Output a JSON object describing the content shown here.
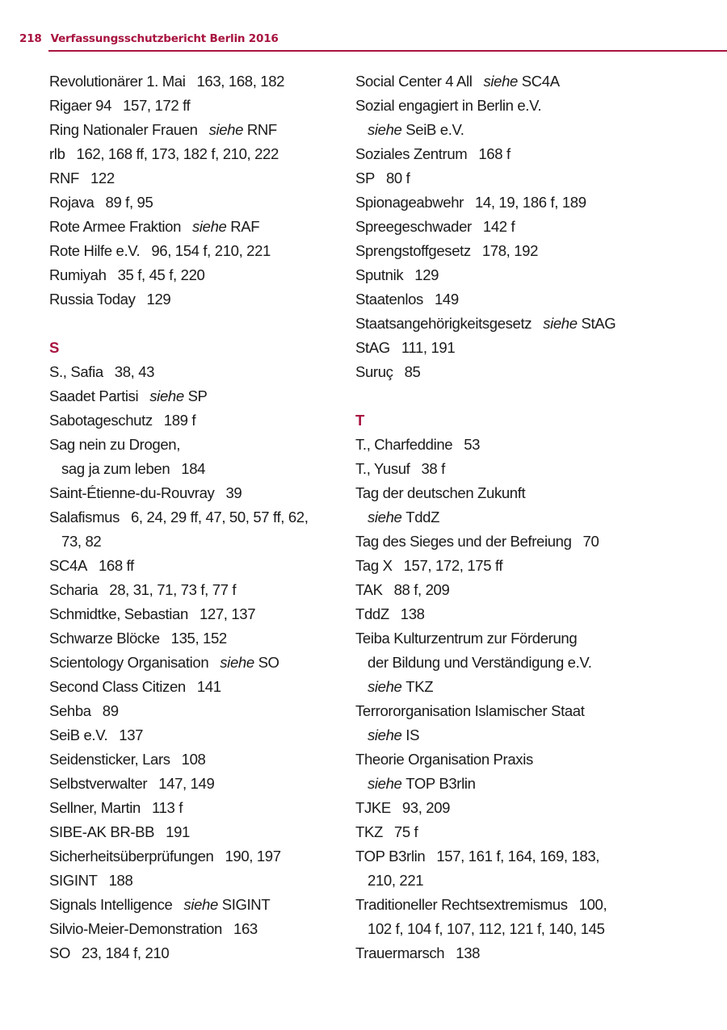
{
  "header": {
    "page_number": "218",
    "title": "Verfassungsschutzbericht Berlin 2016"
  },
  "colors": {
    "accent": "#a8133f",
    "text": "#1a1a1a"
  },
  "columns": [
    {
      "lines": [
        {
          "t": "Revolutionärer 1. Mai",
          "p": "163, 168, 182"
        },
        {
          "t": "Rigaer 94",
          "p": "157, 172 ff"
        },
        {
          "t": "Ring Nationaler Frauen",
          "s": "siehe",
          "r": "RNF"
        },
        {
          "t": "rlb",
          "p": "162, 168 ff, 173, 182 f, 210, 222"
        },
        {
          "t": "RNF",
          "p": "122"
        },
        {
          "t": "Rojava",
          "p": "89 f, 95"
        },
        {
          "t": "Rote Armee Fraktion",
          "s": "siehe",
          "r": "RAF"
        },
        {
          "t": "Rote Hilfe e.V.",
          "p": "96, 154 f, 210, 221"
        },
        {
          "t": "Rumiyah",
          "p": "35 f, 45 f, 220"
        },
        {
          "t": "Russia Today",
          "p": "129"
        },
        {
          "blank": true
        },
        {
          "h": "S"
        },
        {
          "t": "S., Safia",
          "p": "38, 43"
        },
        {
          "t": "Saadet Partisi",
          "s": "siehe",
          "r": "SP"
        },
        {
          "t": "Sabotageschutz",
          "p": "189 f"
        },
        {
          "t": "Sag nein zu Drogen,"
        },
        {
          "i": true,
          "t": "sag ja zum leben",
          "p": "184"
        },
        {
          "t": "Saint-Étienne-du-Rouvray",
          "p": "39"
        },
        {
          "t": "Salafismus",
          "p": "6, 24, 29 ff, 47, 50, 57 ff, 62,"
        },
        {
          "i": true,
          "t": "73, 82"
        },
        {
          "t": "SC4A",
          "p": "168 ff"
        },
        {
          "t": "Scharia",
          "p": "28, 31, 71, 73 f, 77 f"
        },
        {
          "t": "Schmidtke, Sebastian",
          "p": "127, 137"
        },
        {
          "t": "Schwarze Blöcke",
          "p": "135, 152"
        },
        {
          "t": "Scientology Organisation",
          "s": "siehe",
          "r": "SO"
        },
        {
          "t": "Second Class Citizen",
          "p": "141"
        },
        {
          "t": "Sehba",
          "p": "89"
        },
        {
          "t": "SeiB e.V.",
          "p": "137"
        },
        {
          "t": "Seidensticker, Lars",
          "p": "108"
        },
        {
          "t": "Selbstverwalter",
          "p": "147, 149"
        },
        {
          "t": "Sellner, Martin",
          "p": "113 f"
        },
        {
          "t": "SIBE-AK BR-BB",
          "p": "191"
        },
        {
          "t": "Sicherheitsüberprüfungen",
          "p": "190, 197"
        },
        {
          "t": "SIGINT",
          "p": "188"
        },
        {
          "t": "Signals Intelligence",
          "s": "siehe",
          "r": "SIGINT"
        },
        {
          "t": "Silvio-Meier-Demonstration",
          "p": "163"
        },
        {
          "t": "SO",
          "p": "23, 184 f, 210"
        }
      ]
    },
    {
      "lines": [
        {
          "t": "Social Center 4 All",
          "s": "siehe",
          "r": "SC4A"
        },
        {
          "t": "Sozial engagiert in Berlin e.V."
        },
        {
          "i": true,
          "s": "siehe",
          "r": "SeiB e.V."
        },
        {
          "t": "Soziales Zentrum",
          "p": "168 f"
        },
        {
          "t": "SP",
          "p": "80 f"
        },
        {
          "t": "Spionageabwehr",
          "p": "14, 19, 186 f, 189"
        },
        {
          "t": "Spreegeschwader",
          "p": "142 f"
        },
        {
          "t": "Sprengstoffgesetz",
          "p": "178, 192"
        },
        {
          "t": "Sputnik",
          "p": "129"
        },
        {
          "t": "Staatenlos",
          "p": "149"
        },
        {
          "t": "Staatsangehörigkeitsgesetz",
          "s": "siehe",
          "r": "StAG"
        },
        {
          "t": "StAG",
          "p": "111, 191"
        },
        {
          "t": "Suruç",
          "p": "85"
        },
        {
          "blank": true
        },
        {
          "h": "T"
        },
        {
          "t": "T., Charfeddine",
          "p": "53"
        },
        {
          "t": "T., Yusuf",
          "p": "38 f"
        },
        {
          "t": "Tag der deutschen Zukunft"
        },
        {
          "i": true,
          "s": "siehe",
          "r": "TddZ"
        },
        {
          "t": "Tag des Sieges und der Befreiung",
          "p": "70"
        },
        {
          "t": "Tag X",
          "p": "157, 172, 175 ff"
        },
        {
          "t": "TAK",
          "p": "88 f, 209"
        },
        {
          "t": "TddZ",
          "p": "138"
        },
        {
          "t": "Teiba Kulturzentrum zur Förderung"
        },
        {
          "i": true,
          "t": "der Bildung und Verständigung e.V."
        },
        {
          "i": true,
          "s": "siehe",
          "r": "TKZ"
        },
        {
          "t": "Terrororganisation Islamischer Staat"
        },
        {
          "i": true,
          "s": "siehe",
          "r": "IS"
        },
        {
          "t": "Theorie Organisation Praxis"
        },
        {
          "i": true,
          "s": "siehe",
          "r": "TOP B3rlin"
        },
        {
          "t": "TJKE",
          "p": "93, 209"
        },
        {
          "t": "TKZ",
          "p": "75 f"
        },
        {
          "t": "TOP B3rlin",
          "p": "157, 161 f, 164, 169, 183,"
        },
        {
          "i": true,
          "t": "210, 221"
        },
        {
          "t": "Traditioneller Rechtsextremismus",
          "p": "100,"
        },
        {
          "i": true,
          "t": "102 f, 104 f, 107, 112, 121 f, 140, 145"
        },
        {
          "t": "Trauermarsch",
          "p": "138"
        }
      ]
    }
  ]
}
